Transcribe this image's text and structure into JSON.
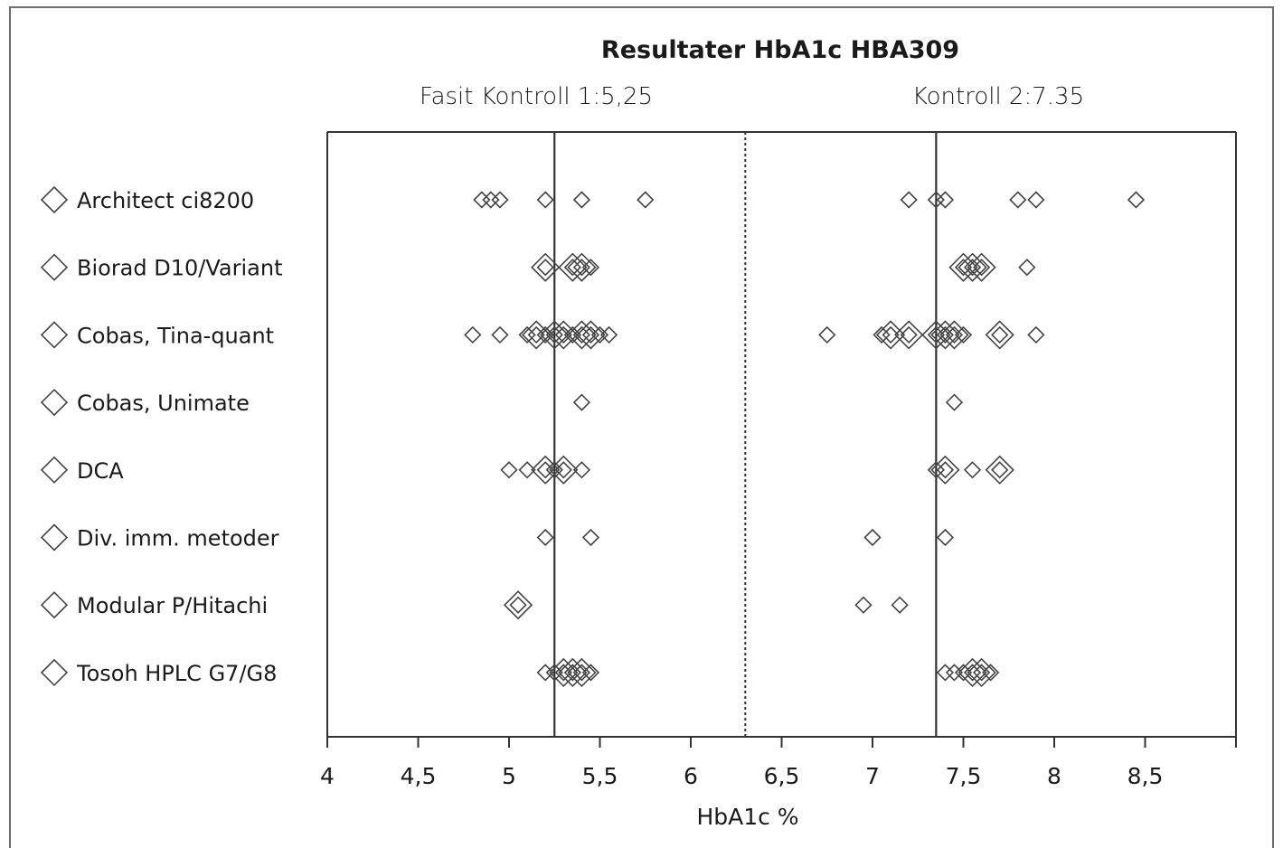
{
  "chart_data": {
    "type": "scatter",
    "title": "Resultater HbA1c HBA309",
    "subtitles": [
      "Fasit Kontroll 1:5,25",
      "Kontroll 2:7.35"
    ],
    "xlabel": "HbA1c %",
    "xlim": [
      4,
      9
    ],
    "x_ticks": [
      4,
      4.5,
      5,
      5.5,
      6,
      6.5,
      7,
      7.5,
      8,
      8.5
    ],
    "x_tick_labels": [
      "4",
      "4,5",
      "5",
      "5,5",
      "6",
      "6,5",
      "7",
      "7,5",
      "8",
      "8,5"
    ],
    "reference_lines": [
      {
        "x": 5.25,
        "style": "solid"
      },
      {
        "x": 6.3,
        "style": "dotted"
      },
      {
        "x": 7.35,
        "style": "solid"
      }
    ],
    "marker": "diamond-outline",
    "categories": [
      "Architect ci8200",
      "Biorad D10/Variant",
      "Cobas, Tina-quant",
      "Cobas, Unimate",
      "DCA",
      "Div. imm. metoder",
      "Modular P/Hitachi",
      "Tosoh HPLC G7/G8"
    ],
    "series": [
      {
        "category": "Architect ci8200",
        "points": [
          {
            "x": 4.85,
            "n": 1
          },
          {
            "x": 4.9,
            "n": 1
          },
          {
            "x": 4.95,
            "n": 1
          },
          {
            "x": 5.2,
            "n": 1
          },
          {
            "x": 5.4,
            "n": 1
          },
          {
            "x": 5.75,
            "n": 1
          },
          {
            "x": 7.2,
            "n": 1
          },
          {
            "x": 7.35,
            "n": 1
          },
          {
            "x": 7.4,
            "n": 1
          },
          {
            "x": 7.8,
            "n": 1
          },
          {
            "x": 7.9,
            "n": 1
          },
          {
            "x": 8.45,
            "n": 1
          }
        ]
      },
      {
        "category": "Biorad D10/Variant",
        "points": [
          {
            "x": 5.2,
            "n": 2
          },
          {
            "x": 5.35,
            "n": 2
          },
          {
            "x": 5.4,
            "n": 2
          },
          {
            "x": 5.45,
            "n": 1
          },
          {
            "x": 7.5,
            "n": 2
          },
          {
            "x": 7.55,
            "n": 2
          },
          {
            "x": 7.6,
            "n": 2
          },
          {
            "x": 7.85,
            "n": 1
          }
        ]
      },
      {
        "category": "Cobas, Tina-quant",
        "points": [
          {
            "x": 4.8,
            "n": 1
          },
          {
            "x": 4.95,
            "n": 1
          },
          {
            "x": 5.1,
            "n": 1
          },
          {
            "x": 5.15,
            "n": 2
          },
          {
            "x": 5.2,
            "n": 1
          },
          {
            "x": 5.25,
            "n": 2
          },
          {
            "x": 5.3,
            "n": 2
          },
          {
            "x": 5.35,
            "n": 1
          },
          {
            "x": 5.4,
            "n": 2
          },
          {
            "x": 5.45,
            "n": 2
          },
          {
            "x": 5.5,
            "n": 1
          },
          {
            "x": 5.55,
            "n": 1
          },
          {
            "x": 6.75,
            "n": 1
          },
          {
            "x": 7.05,
            "n": 1
          },
          {
            "x": 7.1,
            "n": 2
          },
          {
            "x": 7.2,
            "n": 2
          },
          {
            "x": 7.35,
            "n": 2
          },
          {
            "x": 7.4,
            "n": 2
          },
          {
            "x": 7.45,
            "n": 2
          },
          {
            "x": 7.5,
            "n": 1
          },
          {
            "x": 7.7,
            "n": 2
          },
          {
            "x": 7.9,
            "n": 1
          }
        ]
      },
      {
        "category": "Cobas, Unimate",
        "points": [
          {
            "x": 5.4,
            "n": 1
          },
          {
            "x": 7.45,
            "n": 1
          }
        ]
      },
      {
        "category": "DCA",
        "points": [
          {
            "x": 5.0,
            "n": 1
          },
          {
            "x": 5.1,
            "n": 1
          },
          {
            "x": 5.2,
            "n": 2
          },
          {
            "x": 5.25,
            "n": 1
          },
          {
            "x": 5.3,
            "n": 2
          },
          {
            "x": 5.4,
            "n": 1
          },
          {
            "x": 7.35,
            "n": 1
          },
          {
            "x": 7.4,
            "n": 2
          },
          {
            "x": 7.55,
            "n": 1
          },
          {
            "x": 7.7,
            "n": 2
          }
        ]
      },
      {
        "category": "Div. imm. metoder",
        "points": [
          {
            "x": 5.2,
            "n": 1
          },
          {
            "x": 5.45,
            "n": 1
          },
          {
            "x": 7.0,
            "n": 1
          },
          {
            "x": 7.4,
            "n": 1
          }
        ]
      },
      {
        "category": "Modular P/Hitachi",
        "points": [
          {
            "x": 5.05,
            "n": 2
          },
          {
            "x": 6.95,
            "n": 1
          },
          {
            "x": 7.15,
            "n": 1
          }
        ]
      },
      {
        "category": "Tosoh HPLC G7/G8",
        "points": [
          {
            "x": 5.2,
            "n": 1
          },
          {
            "x": 5.25,
            "n": 1
          },
          {
            "x": 5.3,
            "n": 2
          },
          {
            "x": 5.35,
            "n": 2
          },
          {
            "x": 5.4,
            "n": 2
          },
          {
            "x": 5.45,
            "n": 1
          },
          {
            "x": 7.4,
            "n": 1
          },
          {
            "x": 7.45,
            "n": 1
          },
          {
            "x": 7.5,
            "n": 1
          },
          {
            "x": 7.55,
            "n": 2
          },
          {
            "x": 7.6,
            "n": 2
          },
          {
            "x": 7.65,
            "n": 1
          }
        ]
      }
    ],
    "legend": "left",
    "grid": false
  },
  "colors": {
    "marker": "#444444",
    "axis": "#333333",
    "ref_line": "#333333",
    "text": "#1a1a1a"
  }
}
